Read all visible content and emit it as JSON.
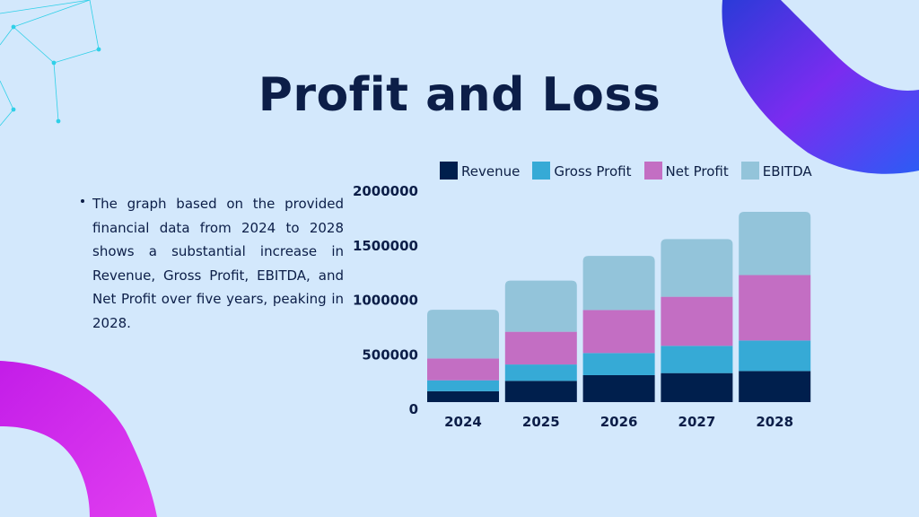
{
  "title": "Profit and Loss",
  "bullet_text": "The graph based on the provided financial data from 2024 to 2028 shows a substantial increase in Revenue, Gross Profit, EBITDA, and Net Profit over five years, peaking in 2028.",
  "colors": {
    "background": "#d3e8fc",
    "text": "#0c1e48"
  },
  "chart_data": {
    "type": "bar",
    "stacked": true,
    "categories": [
      "2024",
      "2025",
      "2026",
      "2027",
      "2028"
    ],
    "series": [
      {
        "name": "Revenue",
        "color": "#001f4d",
        "values": [
          100000,
          195000,
          247000,
          266000,
          285000
        ]
      },
      {
        "name": "Gross Profit",
        "color": "#36aad6",
        "values": [
          100000,
          150000,
          203000,
          250000,
          280000
        ]
      },
      {
        "name": "Net Profit",
        "color": "#c36ec3",
        "values": [
          200000,
          300000,
          395000,
          450000,
          600000
        ]
      },
      {
        "name": "EBITDA",
        "color": "#93c4da",
        "values": [
          447000,
          469000,
          496000,
          529000,
          580000
        ]
      }
    ],
    "yticks": [
      "0",
      "500000",
      "1000000",
      "1500000",
      "2000000"
    ],
    "ylim": [
      0,
      2000000
    ],
    "title": "",
    "xlabel": "",
    "ylabel": "",
    "grid": false,
    "legend": "top"
  }
}
